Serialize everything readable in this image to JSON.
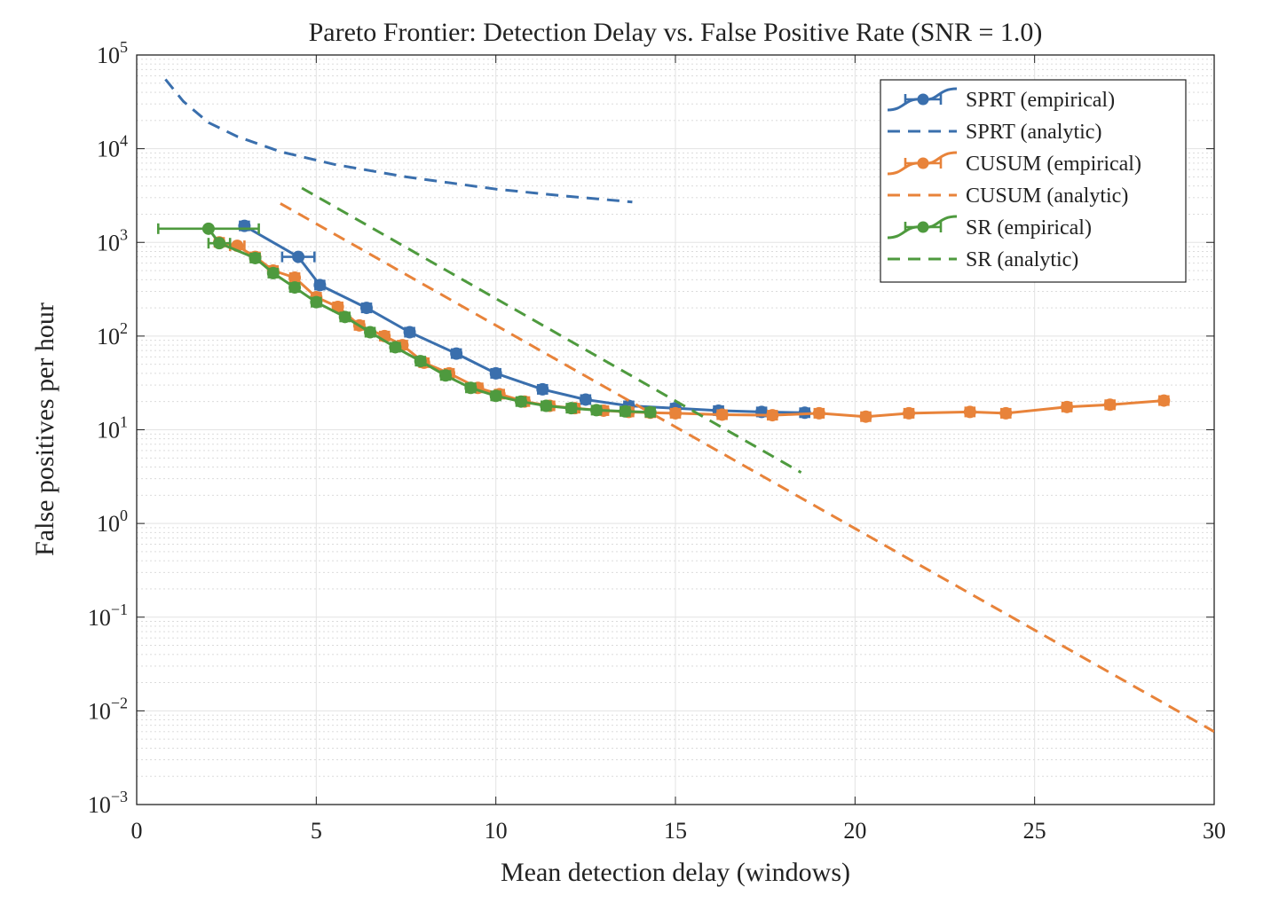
{
  "chart_data": {
    "type": "line",
    "title": "Pareto Frontier: Detection Delay vs.  False Positive Rate (SNR = 1.0)",
    "xlabel": "Mean detection delay (windows)",
    "ylabel": "False positives per hour",
    "xlim": [
      0,
      30
    ],
    "ylim_exp": [
      -3,
      5
    ],
    "yscale": "log",
    "grid": true,
    "minor_grid": true,
    "legend_position": "top-right",
    "x_ticks": [
      0,
      5,
      10,
      15,
      20,
      25,
      30
    ],
    "y_tick_base": "10",
    "y_tick_exponents": [
      "−3",
      "−2",
      "−1",
      "0",
      "1",
      "2",
      "3",
      "4",
      "5"
    ],
    "series": [
      {
        "name": "SPRT (empirical)",
        "color": "#3a6fad",
        "style": "solid",
        "marker": true,
        "points": [
          {
            "x": 3.0,
            "y": 1500,
            "xerr": 0
          },
          {
            "x": 4.5,
            "y": 700,
            "xerr": 0.45
          },
          {
            "x": 5.1,
            "y": 350,
            "xerr": 0
          },
          {
            "x": 6.4,
            "y": 200,
            "xerr": 0
          },
          {
            "x": 7.6,
            "y": 110,
            "xerr": 0
          },
          {
            "x": 8.9,
            "y": 65,
            "xerr": 0
          },
          {
            "x": 10.0,
            "y": 40,
            "xerr": 0
          },
          {
            "x": 11.3,
            "y": 27,
            "xerr": 0
          },
          {
            "x": 12.5,
            "y": 21,
            "xerr": 0
          },
          {
            "x": 13.7,
            "y": 18,
            "xerr": 0
          },
          {
            "x": 15.0,
            "y": 17,
            "xerr": 0
          },
          {
            "x": 16.2,
            "y": 16,
            "xerr": 0
          },
          {
            "x": 17.4,
            "y": 15.5,
            "xerr": 0
          },
          {
            "x": 18.6,
            "y": 15.2,
            "xerr": 0
          }
        ]
      },
      {
        "name": "SPRT (analytic)",
        "color": "#3a6fad",
        "style": "dashed",
        "marker": false,
        "points": [
          {
            "x": 0.8,
            "y": 55000
          },
          {
            "x": 1.3,
            "y": 32000
          },
          {
            "x": 2.0,
            "y": 19000
          },
          {
            "x": 2.8,
            "y": 13500
          },
          {
            "x": 4.0,
            "y": 9300
          },
          {
            "x": 5.5,
            "y": 6800
          },
          {
            "x": 7.5,
            "y": 5000
          },
          {
            "x": 10.0,
            "y": 3700
          },
          {
            "x": 12.0,
            "y": 3100
          },
          {
            "x": 13.8,
            "y": 2700
          }
        ]
      },
      {
        "name": "CUSUM (empirical)",
        "color": "#e8833a",
        "style": "solid",
        "marker": true,
        "points": [
          {
            "x": 2.3,
            "y": 1000,
            "xerr": 0
          },
          {
            "x": 2.8,
            "y": 920,
            "xerr": 0.2
          },
          {
            "x": 3.3,
            "y": 700,
            "xerr": 0
          },
          {
            "x": 3.8,
            "y": 500,
            "xerr": 0
          },
          {
            "x": 4.4,
            "y": 420,
            "xerr": 0
          },
          {
            "x": 5.0,
            "y": 260,
            "xerr": 0
          },
          {
            "x": 5.6,
            "y": 205,
            "xerr": 0
          },
          {
            "x": 6.2,
            "y": 130,
            "xerr": 0
          },
          {
            "x": 6.9,
            "y": 100,
            "xerr": 0
          },
          {
            "x": 7.4,
            "y": 80,
            "xerr": 0
          },
          {
            "x": 8.0,
            "y": 52,
            "xerr": 0
          },
          {
            "x": 8.7,
            "y": 40,
            "xerr": 0
          },
          {
            "x": 9.5,
            "y": 28,
            "xerr": 0
          },
          {
            "x": 10.1,
            "y": 24,
            "xerr": 0
          },
          {
            "x": 10.8,
            "y": 20,
            "xerr": 0
          },
          {
            "x": 11.5,
            "y": 18,
            "xerr": 0
          },
          {
            "x": 12.2,
            "y": 17,
            "xerr": 0
          },
          {
            "x": 13.0,
            "y": 16,
            "xerr": 0
          },
          {
            "x": 13.7,
            "y": 15.5,
            "xerr": 0
          },
          {
            "x": 14.3,
            "y": 15.2,
            "xerr": 0
          },
          {
            "x": 15.0,
            "y": 15.0,
            "xerr": 0
          },
          {
            "x": 16.3,
            "y": 14.5,
            "xerr": 0
          },
          {
            "x": 17.7,
            "y": 14.3,
            "xerr": 0
          },
          {
            "x": 19.0,
            "y": 15.0,
            "xerr": 0
          },
          {
            "x": 20.3,
            "y": 13.8,
            "xerr": 0
          },
          {
            "x": 21.5,
            "y": 15.0,
            "xerr": 0
          },
          {
            "x": 23.2,
            "y": 15.5,
            "xerr": 0
          },
          {
            "x": 24.2,
            "y": 15.0,
            "xerr": 0
          },
          {
            "x": 25.9,
            "y": 17.5,
            "xerr": 0
          },
          {
            "x": 27.1,
            "y": 18.5,
            "xerr": 0
          },
          {
            "x": 28.6,
            "y": 20.5,
            "xerr": 0
          }
        ]
      },
      {
        "name": "CUSUM (analytic)",
        "color": "#e8833a",
        "style": "dashed",
        "marker": false,
        "points": [
          {
            "x": 4.0,
            "y": 2600
          },
          {
            "x": 30.0,
            "y": 0.006
          }
        ]
      },
      {
        "name": "SR (empirical)",
        "color": "#4e9a3e",
        "style": "solid",
        "marker": true,
        "points": [
          {
            "x": 2.0,
            "y": 1400,
            "xerr": 1.4
          },
          {
            "x": 2.3,
            "y": 980,
            "xerr": 0.3
          },
          {
            "x": 3.3,
            "y": 680,
            "xerr": 0
          },
          {
            "x": 3.8,
            "y": 470,
            "xerr": 0
          },
          {
            "x": 4.4,
            "y": 330,
            "xerr": 0
          },
          {
            "x": 5.0,
            "y": 230,
            "xerr": 0
          },
          {
            "x": 5.8,
            "y": 160,
            "xerr": 0
          },
          {
            "x": 6.5,
            "y": 110,
            "xerr": 0
          },
          {
            "x": 7.2,
            "y": 76,
            "xerr": 0
          },
          {
            "x": 7.9,
            "y": 54,
            "xerr": 0
          },
          {
            "x": 8.6,
            "y": 38,
            "xerr": 0
          },
          {
            "x": 9.3,
            "y": 28,
            "xerr": 0
          },
          {
            "x": 10.0,
            "y": 23,
            "xerr": 0
          },
          {
            "x": 10.7,
            "y": 20,
            "xerr": 0
          },
          {
            "x": 11.4,
            "y": 18,
            "xerr": 0
          },
          {
            "x": 12.1,
            "y": 17,
            "xerr": 0
          },
          {
            "x": 12.8,
            "y": 16.2,
            "xerr": 0
          },
          {
            "x": 13.6,
            "y": 15.7,
            "xerr": 0
          },
          {
            "x": 14.3,
            "y": 15.4,
            "xerr": 0
          }
        ]
      },
      {
        "name": "SR (analytic)",
        "color": "#4e9a3e",
        "style": "dashed",
        "marker": false,
        "points": [
          {
            "x": 4.6,
            "y": 3800
          },
          {
            "x": 18.5,
            "y": 3.5
          }
        ]
      }
    ]
  }
}
